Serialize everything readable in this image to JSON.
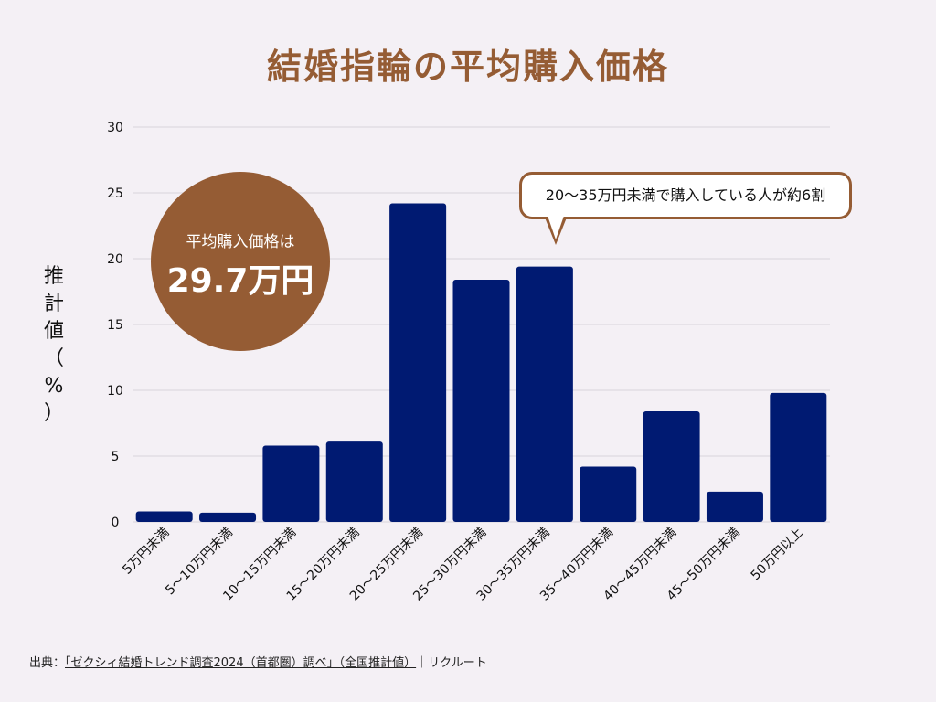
{
  "chart_data": {
    "type": "bar",
    "title": "結婚指輪の平均購入価格",
    "xlabel": "",
    "ylabel": "推計値（%）",
    "ylim": [
      0,
      30
    ],
    "yticks": [
      0,
      5,
      10,
      15,
      20,
      25,
      30
    ],
    "grid": true,
    "categories": [
      "5万円未満",
      "5～10万円未満",
      "10～15万円未満",
      "15～20万円未満",
      "20～25万円未満",
      "25～30万円未満",
      "30～35万円未満",
      "35～40万円未満",
      "40～45万円未満",
      "45～50万円未満",
      "50万円以上"
    ],
    "values": [
      0.8,
      0.7,
      5.8,
      6.1,
      24.2,
      18.4,
      19.4,
      4.2,
      8.4,
      2.3,
      9.8
    ],
    "bar_color": "#001a72"
  },
  "ylabel_chars": [
    "推",
    "計",
    "値",
    "（",
    "%",
    "）"
  ],
  "badge": {
    "line1": "平均購入価格は",
    "line2": "29.7万円",
    "color": "#955c34"
  },
  "callout": {
    "text": "20〜35万円未満で購入している人が約6割"
  },
  "source": {
    "prefix": "出典：",
    "link": "「ゼクシィ結婚トレンド調査2024（首都圏）調べ」（全国推計値）",
    "suffix": "｜リクルート"
  }
}
